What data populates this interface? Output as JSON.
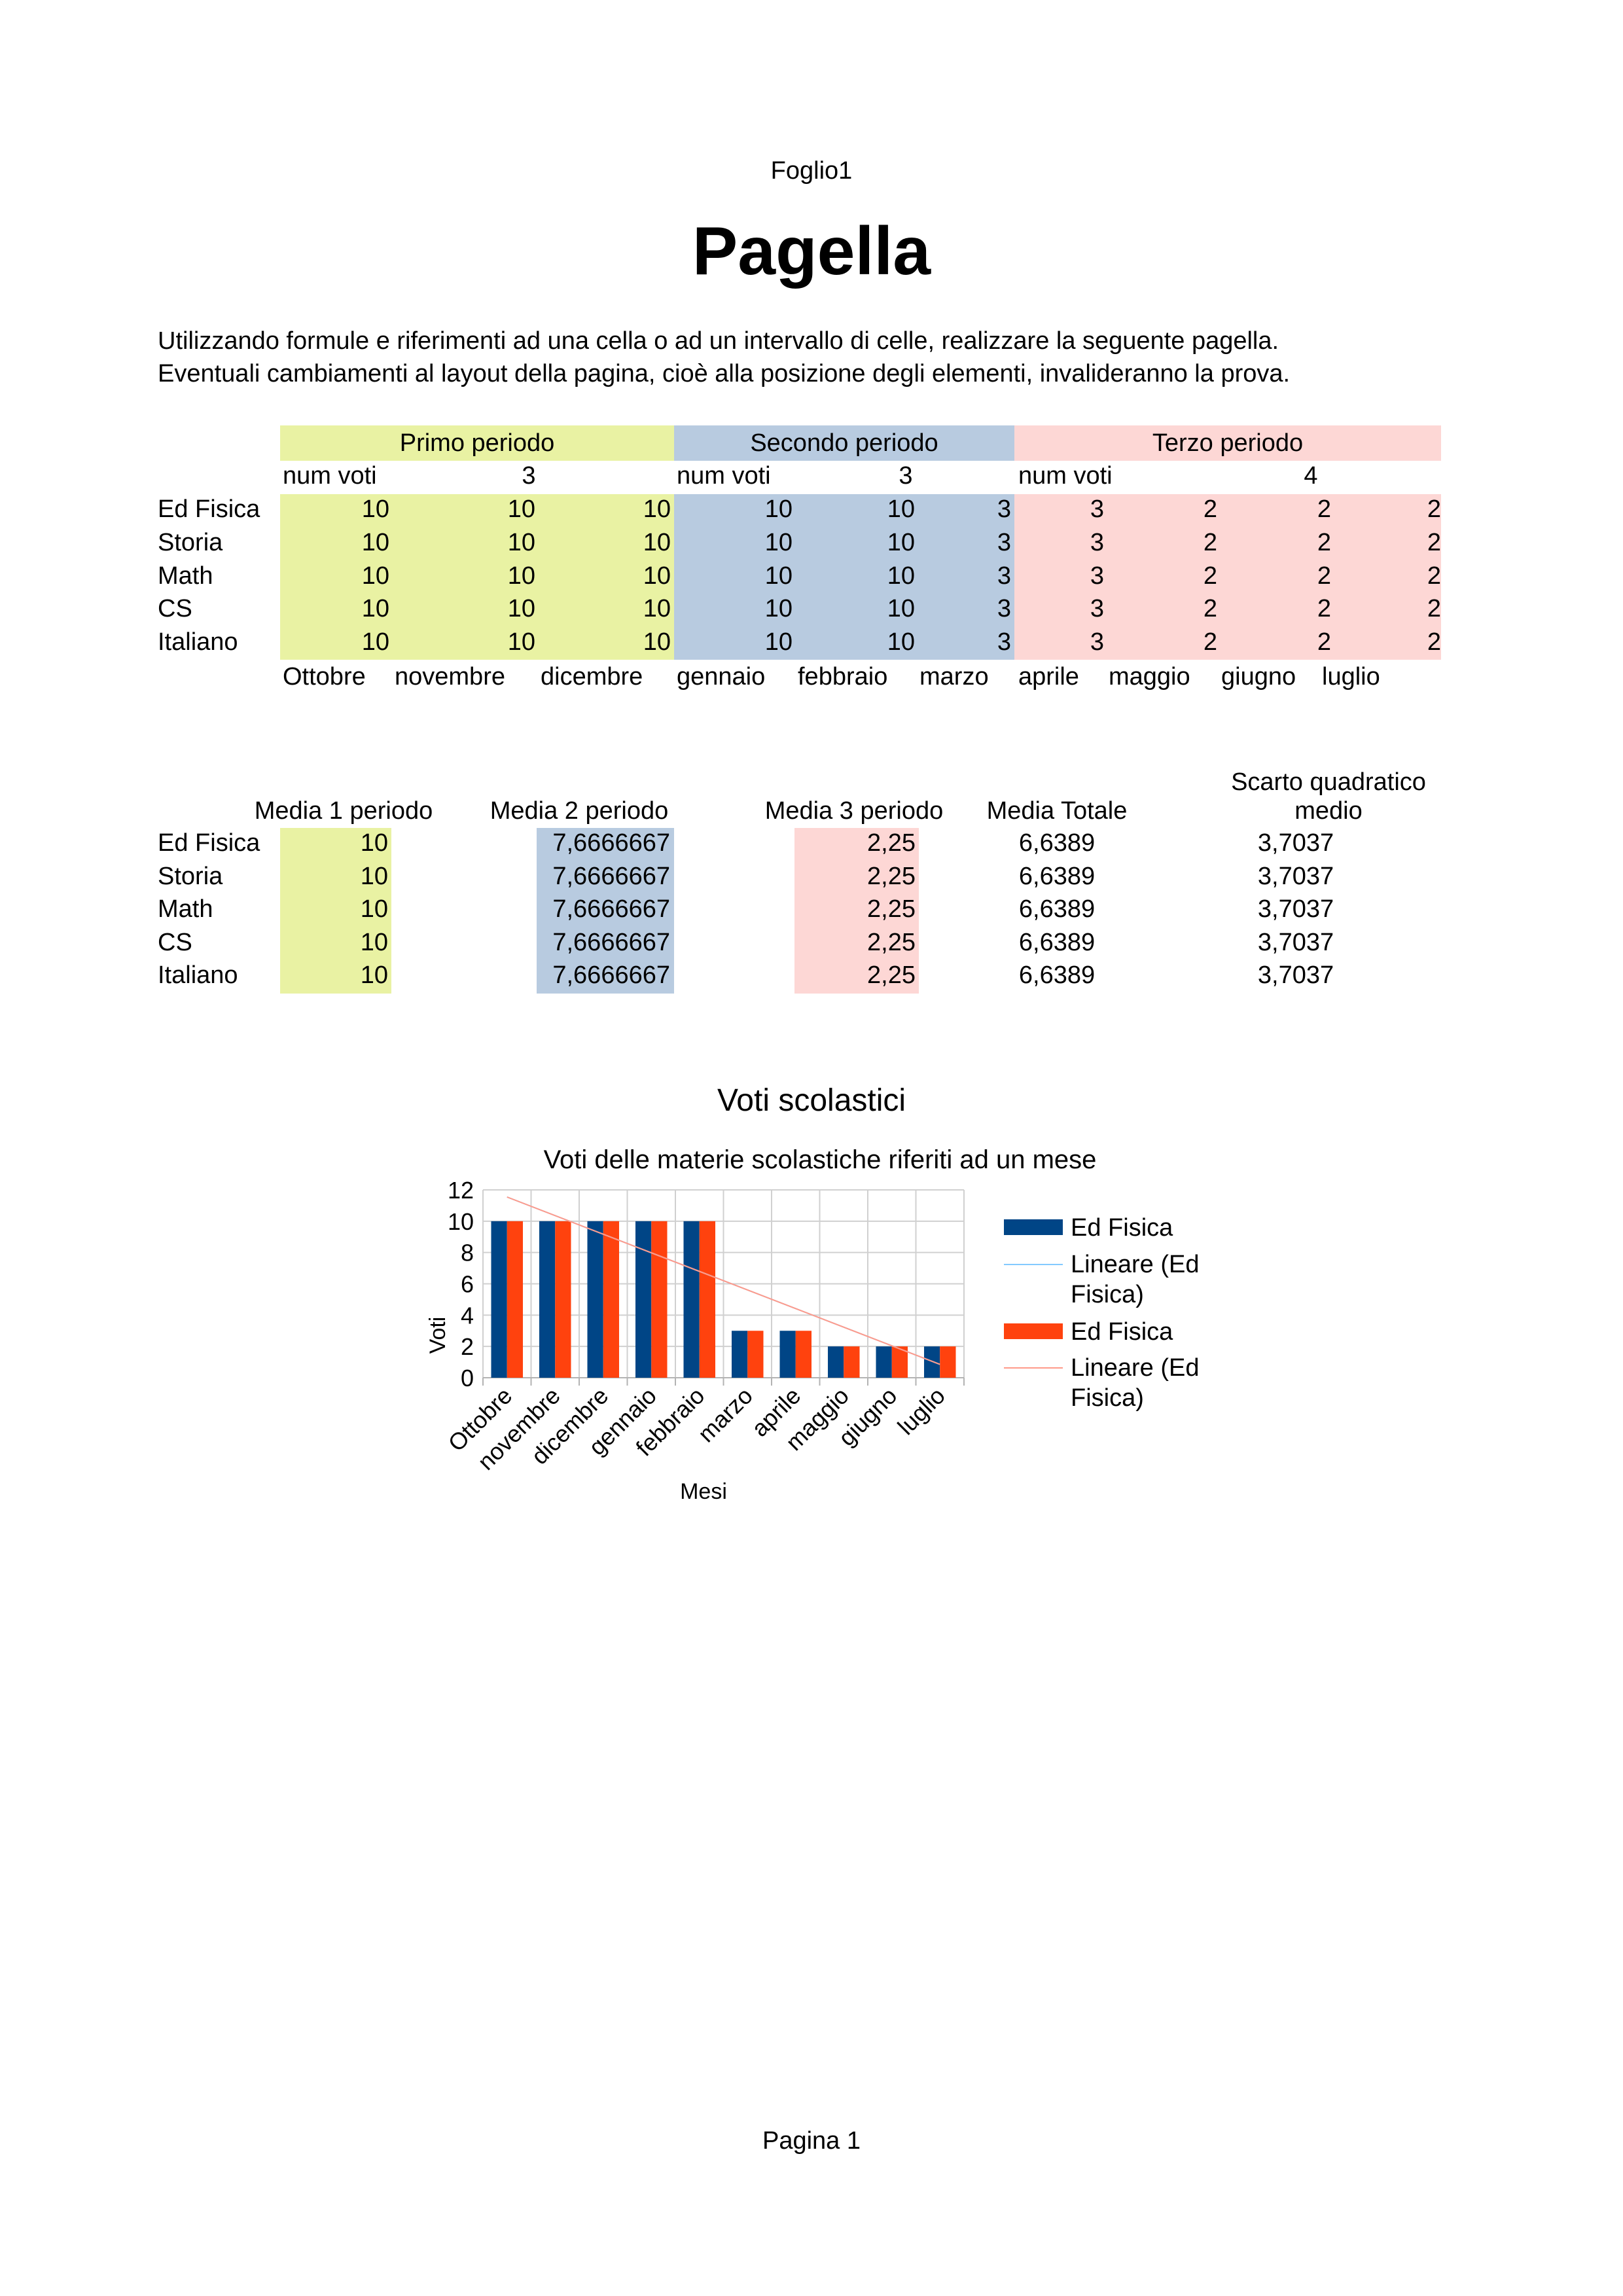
{
  "header": {
    "sheet_name": "Foglio1",
    "title": "Pagella"
  },
  "instructions": [
    "Utilizzando formule e riferimenti ad una cella o ad un intervallo di celle, realizzare la seguente pagella.",
    "Eventuali cambiamenti al layout della pagina, cioè alla posizione degli elementi, invalideranno la prova."
  ],
  "grades_table": {
    "periods": [
      {
        "label": "Primo periodo",
        "num_voti_label": "num voti",
        "num_voti": "3",
        "color": "#e9f2a3"
      },
      {
        "label": "Secondo periodo",
        "num_voti_label": "num voti",
        "num_voti": "3",
        "color": "#b8cbe0"
      },
      {
        "label": "Terzo periodo",
        "num_voti_label": "num voti",
        "num_voti": "4",
        "color": "#fdd7d5"
      }
    ],
    "rows": [
      {
        "subject": "Ed Fisica",
        "grades": [
          "10",
          "10",
          "10",
          "10",
          "10",
          "3",
          "3",
          "2",
          "2",
          "2"
        ]
      },
      {
        "subject": "Storia",
        "grades": [
          "10",
          "10",
          "10",
          "10",
          "10",
          "3",
          "3",
          "2",
          "2",
          "2"
        ]
      },
      {
        "subject": "Math",
        "grades": [
          "10",
          "10",
          "10",
          "10",
          "10",
          "3",
          "3",
          "2",
          "2",
          "2"
        ]
      },
      {
        "subject": "CS",
        "grades": [
          "10",
          "10",
          "10",
          "10",
          "10",
          "3",
          "3",
          "2",
          "2",
          "2"
        ]
      },
      {
        "subject": "Italiano",
        "grades": [
          "10",
          "10",
          "10",
          "10",
          "10",
          "3",
          "3",
          "2",
          "2",
          "2"
        ]
      }
    ],
    "months": [
      "Ottobre",
      "novembre",
      "dicembre",
      "gennaio",
      "febbraio",
      "marzo",
      "aprile",
      "maggio",
      "giugno",
      "luglio"
    ]
  },
  "averages_table": {
    "headers": [
      "Media 1 periodo",
      "Media 2 periodo",
      "Media 3 periodo",
      "Media Totale",
      "Scarto quadratico",
      "medio"
    ],
    "rows": [
      {
        "subject": "Ed Fisica",
        "m1": "10",
        "m2": "7,6666667",
        "m3": "2,25",
        "tot": "6,6389",
        "sqm": "3,7037"
      },
      {
        "subject": "Storia",
        "m1": "10",
        "m2": "7,6666667",
        "m3": "2,25",
        "tot": "6,6389",
        "sqm": "3,7037"
      },
      {
        "subject": "Math",
        "m1": "10",
        "m2": "7,6666667",
        "m3": "2,25",
        "tot": "6,6389",
        "sqm": "3,7037"
      },
      {
        "subject": "CS",
        "m1": "10",
        "m2": "7,6666667",
        "m3": "2,25",
        "tot": "6,6389",
        "sqm": "3,7037"
      },
      {
        "subject": "Italiano",
        "m1": "10",
        "m2": "7,6666667",
        "m3": "2,25",
        "tot": "6,6389",
        "sqm": "3,7037"
      }
    ]
  },
  "chart_data": {
    "type": "bar",
    "title": "Voti scolastici",
    "subtitle": "Voti delle materie scolastiche riferiti ad un mese",
    "xlabel": "Mesi",
    "ylabel": "Voti",
    "ylim": [
      0,
      12
    ],
    "yticks": [
      "0",
      "2",
      "4",
      "6",
      "8",
      "10",
      "12"
    ],
    "categories": [
      "Ottobre",
      "novembre",
      "dicembre",
      "gennaio",
      "febbraio",
      "marzo",
      "aprile",
      "maggio",
      "giugno",
      "luglio"
    ],
    "series": [
      {
        "name": "Ed Fisica",
        "values": [
          10,
          10,
          10,
          10,
          10,
          3,
          3,
          2,
          2,
          2
        ],
        "color": "#004586"
      },
      {
        "name": "Ed Fisica",
        "values": [
          10,
          10,
          10,
          10,
          10,
          3,
          3,
          2,
          2,
          2
        ],
        "color": "#ff420e"
      }
    ],
    "trendlines": [
      {
        "name": "Lineare (Ed Fisica)",
        "color": "#83caff"
      },
      {
        "name": "Lineare (Ed Fisica)",
        "color": "#ff9a8a"
      }
    ],
    "legend_position": "right",
    "grid": true
  },
  "footer": {
    "page_label": "Pagina 1"
  }
}
